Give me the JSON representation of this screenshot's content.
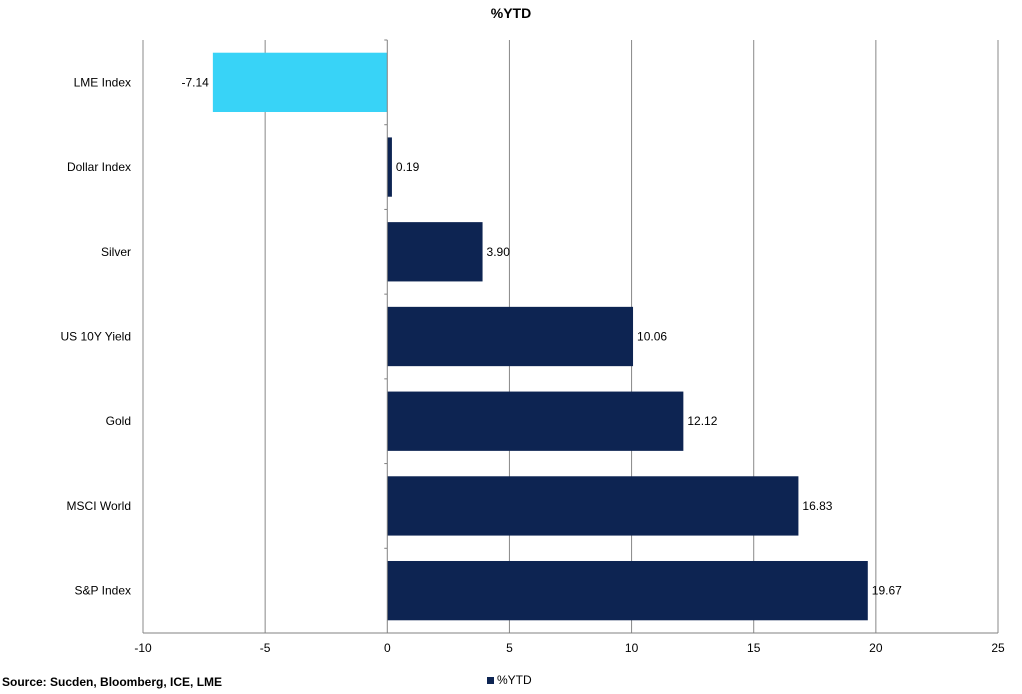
{
  "chart_data": {
    "type": "bar",
    "orientation": "horizontal",
    "title": "%YTD",
    "categories": [
      "LME Index",
      "Dollar Index",
      "Silver",
      "US 10Y Yield",
      "Gold",
      "MSCI World",
      "S&P Index"
    ],
    "series": [
      {
        "name": "%YTD",
        "values": [
          -7.14,
          0.19,
          3.9,
          10.06,
          12.12,
          16.83,
          19.67
        ],
        "labels": [
          "-7.14",
          "0.19",
          "3.90",
          "10.06",
          "12.12",
          "16.83",
          "19.67"
        ]
      }
    ],
    "xlim": [
      -10,
      25
    ],
    "xticks": [
      -10,
      -5,
      0,
      5,
      10,
      15,
      20,
      25
    ],
    "xtick_labels": [
      "-10",
      "-5",
      "0",
      "5",
      "10",
      "15",
      "20",
      "25"
    ],
    "grid": "vertical",
    "legend": "bottom",
    "colors": {
      "positive": "#0d2452",
      "negative": "#38d3f7",
      "grid": "#888888",
      "axis": "#808080"
    }
  },
  "footer": {
    "source": "Source: Sucden, Bloomberg, ICE, LME"
  }
}
